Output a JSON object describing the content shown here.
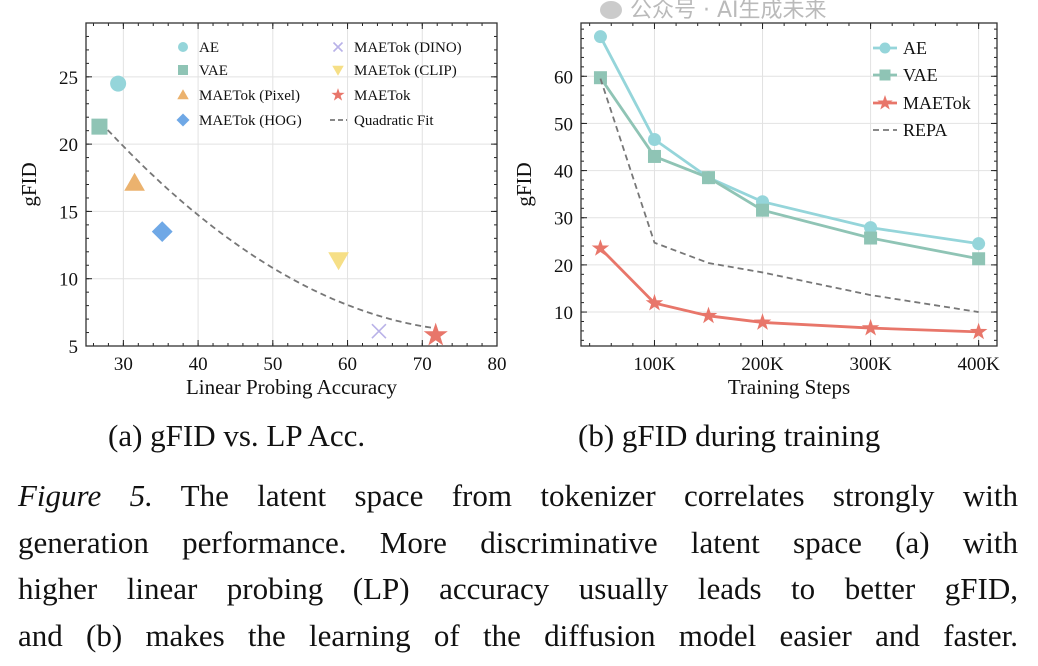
{
  "chart_data": [
    {
      "type": "scatter",
      "title": "",
      "xlabel": "Linear Probing Accuracy",
      "ylabel": "gFID",
      "xlim": [
        25,
        80
      ],
      "ylim": [
        5,
        29
      ],
      "xticks": [
        30,
        40,
        50,
        60,
        70,
        80
      ],
      "yticks": [
        5,
        10,
        15,
        20,
        25
      ],
      "grid": true,
      "legend_placement": "top-right",
      "series": [
        {
          "name": "AE",
          "marker": "circle",
          "color": "#95d5da",
          "x": 29.3,
          "y": 24.5
        },
        {
          "name": "VAE",
          "marker": "square",
          "color": "#8fc4b5",
          "x": 26.8,
          "y": 21.3
        },
        {
          "name": "MAETok (Pixel)",
          "marker": "triangle-up",
          "color": "#ebb26e",
          "x": 31.5,
          "y": 17.1
        },
        {
          "name": "MAETok (HOG)",
          "marker": "diamond",
          "color": "#6fa8e6",
          "x": 35.2,
          "y": 13.5
        },
        {
          "name": "MAETok (DINO)",
          "marker": "x",
          "color": "#b9b2e8",
          "x": 64.2,
          "y": 6.1
        },
        {
          "name": "MAETok (CLIP)",
          "marker": "triangle-down",
          "color": "#f6df86",
          "x": 58.8,
          "y": 11.4
        },
        {
          "name": "MAETok",
          "marker": "star",
          "color": "#e8766a",
          "x": 71.8,
          "y": 5.8
        }
      ],
      "fit": {
        "name": "Quadratic Fit",
        "color": "#777777",
        "coeffs": [
          0.005889,
          -0.92302,
          42.227
        ],
        "x_range": [
          27,
          72
        ]
      }
    },
    {
      "type": "line",
      "title": "",
      "xlabel": "Training Steps",
      "ylabel": "gFID",
      "x": [
        50000,
        100000,
        150000,
        200000,
        300000,
        400000
      ],
      "xlim": [
        32000,
        417000
      ],
      "ylim": [
        2.8,
        71.3
      ],
      "xticks": [
        100000,
        200000,
        300000,
        400000
      ],
      "xtick_labels": [
        "100K",
        "200K",
        "300K",
        "400K"
      ],
      "yticks": [
        10,
        20,
        30,
        40,
        50,
        60
      ],
      "grid": true,
      "legend_placement": "top-right",
      "series": [
        {
          "name": "AE",
          "marker": "circle",
          "color": "#95d5da",
          "dashed": false,
          "values": [
            68.4,
            46.6,
            38.5,
            33.4,
            27.9,
            24.5
          ]
        },
        {
          "name": "VAE",
          "marker": "square",
          "color": "#8fc4b5",
          "dashed": false,
          "values": [
            59.7,
            43.0,
            38.5,
            31.6,
            25.7,
            21.3
          ]
        },
        {
          "name": "MAETok",
          "marker": "star",
          "color": "#e8766a",
          "dashed": false,
          "values": [
            23.5,
            11.9,
            9.2,
            7.8,
            6.6,
            5.8
          ]
        },
        {
          "name": "REPA",
          "marker": "none",
          "color": "#777777",
          "dashed": true,
          "values": [
            59.5,
            24.7,
            20.4,
            18.4,
            13.6,
            10.0
          ]
        }
      ]
    }
  ],
  "subcaptions": {
    "a": "(a) gFID vs. LP Acc.",
    "b": "(b) gFID during training"
  },
  "caption": {
    "label": "Figure 5.",
    "lines": [
      " The latent space from tokenizer correlates strongly with",
      "generation performance. More discriminative latent space (a) with",
      "higher linear probing (LP) accuracy usually leads to better gFID,",
      "and (b) makes the learning of the diffusion model easier and faster."
    ]
  },
  "watermark": "公众号 · AI生成未来"
}
